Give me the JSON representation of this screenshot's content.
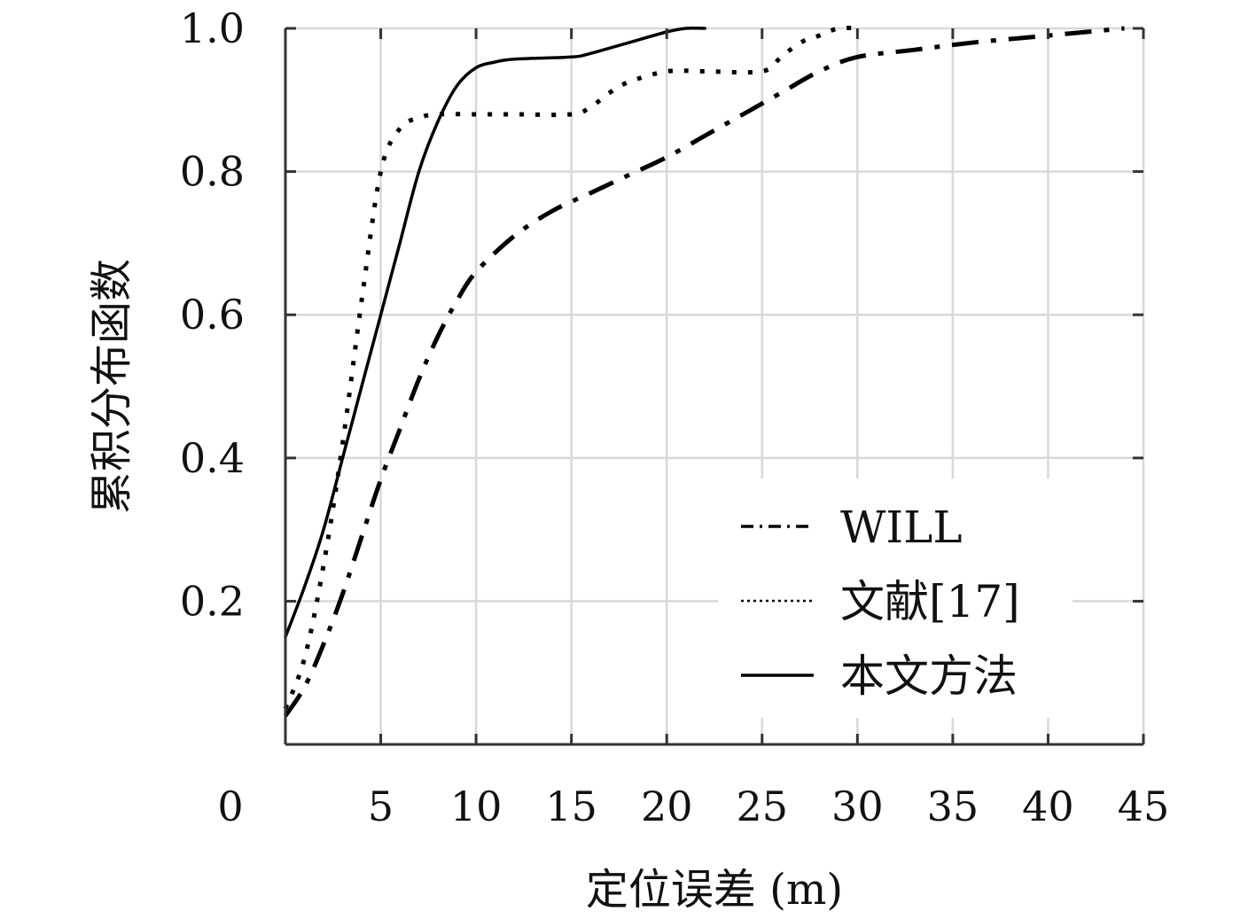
{
  "chart_data": {
    "type": "line",
    "xlabel": "定位误差 (m)",
    "ylabel": "累积分布函数",
    "xlim": [
      0,
      45
    ],
    "ylim": [
      0,
      1.0
    ],
    "x_ticks": [
      "0",
      "5",
      "10",
      "15",
      "20",
      "25",
      "30",
      "35",
      "40",
      "45"
    ],
    "y_ticks": [
      "0.2",
      "0.4",
      "0.6",
      "0.8",
      "1.0"
    ],
    "grid": true,
    "legend_position": "bottom-right",
    "series": [
      {
        "name": "WILL",
        "style": "dash-dot",
        "x": [
          0,
          1,
          2,
          3,
          4,
          5,
          6,
          7,
          8,
          9,
          10,
          12,
          14,
          16,
          18,
          20,
          22,
          24,
          26,
          28,
          30,
          33,
          36,
          40,
          44
        ],
        "y": [
          0.04,
          0.08,
          0.14,
          0.21,
          0.29,
          0.37,
          0.44,
          0.51,
          0.57,
          0.62,
          0.66,
          0.71,
          0.745,
          0.77,
          0.795,
          0.82,
          0.85,
          0.88,
          0.91,
          0.94,
          0.96,
          0.97,
          0.98,
          0.99,
          1.0
        ]
      },
      {
        "name": "文献[17]",
        "style": "dotted",
        "x": [
          0,
          1,
          2,
          3,
          4,
          5,
          6,
          7,
          8,
          10,
          12,
          15,
          16,
          17,
          18,
          20,
          22,
          25,
          26,
          27,
          28,
          29,
          30
        ],
        "y": [
          0.05,
          0.12,
          0.25,
          0.42,
          0.62,
          0.8,
          0.86,
          0.875,
          0.88,
          0.88,
          0.88,
          0.88,
          0.89,
          0.91,
          0.925,
          0.94,
          0.94,
          0.94,
          0.96,
          0.98,
          0.99,
          1.0,
          1.0
        ]
      },
      {
        "name": "本文方法",
        "style": "solid",
        "x": [
          0,
          1,
          2,
          3,
          4,
          5,
          6,
          7,
          8,
          9,
          10,
          11,
          12,
          15,
          16,
          18,
          20,
          21,
          22
        ],
        "y": [
          0.15,
          0.22,
          0.3,
          0.4,
          0.5,
          0.6,
          0.7,
          0.8,
          0.87,
          0.92,
          0.945,
          0.953,
          0.957,
          0.96,
          0.965,
          0.98,
          0.995,
          1.0,
          1.0
        ]
      }
    ]
  }
}
